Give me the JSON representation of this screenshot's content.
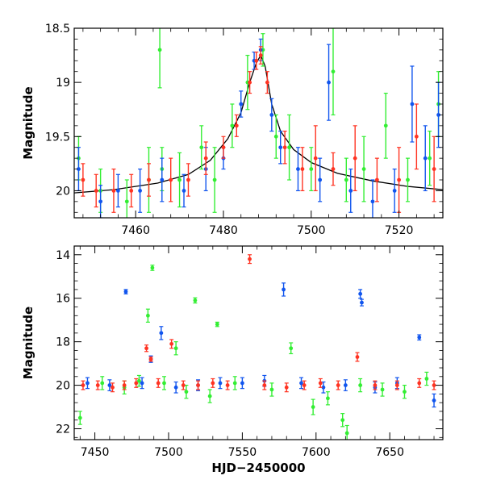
{
  "chart_data": [
    {
      "type": "scatter",
      "title": "",
      "xlabel": "",
      "ylabel": "Magnitude",
      "xlim": [
        7446,
        7530
      ],
      "ylim": [
        20.25,
        18.5
      ],
      "y_inverted": true,
      "grid": false,
      "xticks": [
        7460,
        7480,
        7500,
        7520
      ],
      "yticks": [
        18.5,
        19,
        19.5,
        20
      ],
      "ytick_labels": [
        "18.5",
        "19",
        "19.5",
        "20"
      ],
      "colors": {
        "green": "#33ee33",
        "blue": "#1155ee",
        "red": "#ff3322",
        "model": "#000000"
      },
      "model_curve": {
        "x": [
          7446,
          7455,
          7465,
          7472,
          7477,
          7481,
          7484,
          7486,
          7487.5,
          7488.5,
          7489.5,
          7491,
          7493,
          7496,
          7500,
          7506,
          7514,
          7522,
          7530
        ],
        "y": [
          20.02,
          19.99,
          19.93,
          19.85,
          19.72,
          19.52,
          19.28,
          19.0,
          18.82,
          18.75,
          18.85,
          19.2,
          19.45,
          19.62,
          19.74,
          19.84,
          19.91,
          19.96,
          19.99
        ]
      },
      "series": [
        {
          "color": "green",
          "x": [
            7447,
            7452,
            7458,
            7463,
            7465.5,
            7466,
            7470,
            7475,
            7478,
            7482,
            7485.5,
            7489,
            7492,
            7495,
            7500,
            7505,
            7508,
            7512,
            7517,
            7522,
            7527,
            7529
          ],
          "y": [
            19.7,
            20.0,
            20.1,
            19.9,
            18.7,
            19.8,
            19.9,
            19.6,
            19.9,
            19.4,
            19.0,
            18.7,
            19.5,
            19.6,
            19.8,
            18.9,
            19.9,
            19.8,
            19.4,
            19.9,
            19.7,
            19.2
          ],
          "err": [
            0.2,
            0.2,
            0.2,
            0.3,
            0.35,
            0.2,
            0.25,
            0.2,
            0.3,
            0.2,
            0.25,
            0.15,
            0.2,
            0.3,
            0.2,
            0.4,
            0.2,
            0.3,
            0.3,
            0.2,
            0.25,
            0.3
          ]
        },
        {
          "color": "blue",
          "x": [
            7447,
            7452,
            7456,
            7461,
            7466,
            7471,
            7476,
            7480,
            7484,
            7487,
            7488.5,
            7491,
            7493,
            7497,
            7502,
            7504,
            7509,
            7514,
            7519,
            7523,
            7526,
            7529
          ],
          "y": [
            19.8,
            20.1,
            20.0,
            20.0,
            19.9,
            20.0,
            19.8,
            19.7,
            19.2,
            18.8,
            18.7,
            19.3,
            19.6,
            19.8,
            19.9,
            19.0,
            20.0,
            20.1,
            20.0,
            19.2,
            19.7,
            19.3
          ],
          "err": [
            0.2,
            0.15,
            0.15,
            0.2,
            0.2,
            0.15,
            0.2,
            0.1,
            0.12,
            0.08,
            0.1,
            0.15,
            0.15,
            0.2,
            0.2,
            0.35,
            0.2,
            0.2,
            0.2,
            0.35,
            0.3,
            0.3
          ]
        },
        {
          "color": "red",
          "x": [
            7448,
            7451,
            7455,
            7459,
            7463,
            7468,
            7472,
            7476,
            7480,
            7483,
            7486,
            7487.5,
            7488.5,
            7490,
            7494,
            7498,
            7501,
            7505,
            7510,
            7515,
            7520,
            7524,
            7528
          ],
          "y": [
            19.9,
            20.0,
            20.0,
            20.0,
            19.9,
            19.9,
            19.9,
            19.7,
            19.6,
            19.4,
            19.0,
            18.8,
            18.75,
            19.0,
            19.6,
            19.8,
            19.7,
            19.8,
            19.7,
            19.9,
            19.9,
            19.5,
            19.8
          ],
          "err": [
            0.15,
            0.15,
            0.2,
            0.15,
            0.15,
            0.2,
            0.15,
            0.15,
            0.1,
            0.1,
            0.1,
            0.08,
            0.08,
            0.1,
            0.15,
            0.2,
            0.3,
            0.15,
            0.3,
            0.2,
            0.3,
            0.3,
            0.3
          ]
        }
      ]
    },
    {
      "type": "scatter",
      "title": "",
      "xlabel": "HJD−2450000",
      "ylabel": "Magnitude",
      "xlim": [
        7436,
        7686
      ],
      "ylim": [
        22.5,
        13.6
      ],
      "y_inverted": true,
      "grid": false,
      "xticks": [
        7450,
        7500,
        7550,
        7600,
        7650
      ],
      "yticks": [
        14,
        16,
        18,
        20,
        22
      ],
      "ytick_labels": [
        "14",
        "16",
        "18",
        "20",
        "22"
      ],
      "colors": {
        "green": "#33ee33",
        "blue": "#1155ee",
        "red": "#ff3322"
      },
      "series": [
        {
          "color": "green",
          "x": [
            7440,
            7455,
            7470,
            7480,
            7486,
            7489,
            7497,
            7505,
            7512,
            7518,
            7528,
            7533,
            7545,
            7570,
            7583,
            7598,
            7608,
            7618,
            7621,
            7630,
            7645,
            7660,
            7675
          ],
          "y": [
            21.5,
            19.9,
            20.1,
            19.8,
            16.8,
            14.6,
            19.9,
            18.3,
            20.3,
            16.1,
            20.5,
            17.2,
            19.9,
            20.2,
            18.3,
            21.0,
            20.6,
            21.6,
            22.2,
            20.0,
            20.2,
            20.3,
            19.7
          ],
          "err": [
            0.3,
            0.3,
            0.3,
            0.25,
            0.3,
            0.12,
            0.3,
            0.3,
            0.3,
            0.12,
            0.3,
            0.1,
            0.3,
            0.3,
            0.25,
            0.35,
            0.3,
            0.3,
            0.35,
            0.3,
            0.3,
            0.3,
            0.3
          ]
        },
        {
          "color": "blue",
          "x": [
            7445,
            7460,
            7471,
            7482,
            7488,
            7495,
            7505,
            7520,
            7535,
            7550,
            7565,
            7578,
            7590,
            7605,
            7620,
            7630,
            7631,
            7640,
            7655,
            7670,
            7680
          ],
          "y": [
            19.9,
            20.0,
            15.7,
            19.9,
            18.8,
            17.6,
            20.1,
            20.0,
            19.9,
            19.9,
            19.8,
            15.6,
            19.9,
            20.1,
            20.0,
            15.8,
            16.2,
            20.1,
            19.9,
            17.8,
            20.7
          ],
          "err": [
            0.25,
            0.25,
            0.1,
            0.25,
            0.15,
            0.3,
            0.25,
            0.25,
            0.25,
            0.25,
            0.25,
            0.3,
            0.25,
            0.25,
            0.25,
            0.2,
            0.15,
            0.25,
            0.25,
            0.12,
            0.3
          ]
        },
        {
          "color": "red",
          "x": [
            7442,
            7452,
            7462,
            7470,
            7478,
            7485,
            7488,
            7493,
            7502,
            7510,
            7520,
            7530,
            7540,
            7555,
            7565,
            7580,
            7592,
            7603,
            7615,
            7628,
            7640,
            7655,
            7670,
            7680
          ],
          "y": [
            20.0,
            20.0,
            20.1,
            20.0,
            19.9,
            18.3,
            18.8,
            19.9,
            18.1,
            20.0,
            20.0,
            19.9,
            20.0,
            14.2,
            20.0,
            20.1,
            20.0,
            19.9,
            20.0,
            18.7,
            20.0,
            20.0,
            19.9,
            20.0
          ],
          "err": [
            0.2,
            0.2,
            0.2,
            0.2,
            0.2,
            0.15,
            0.1,
            0.2,
            0.2,
            0.2,
            0.2,
            0.2,
            0.2,
            0.2,
            0.2,
            0.2,
            0.2,
            0.2,
            0.2,
            0.2,
            0.2,
            0.2,
            0.2,
            0.2
          ]
        }
      ]
    }
  ]
}
